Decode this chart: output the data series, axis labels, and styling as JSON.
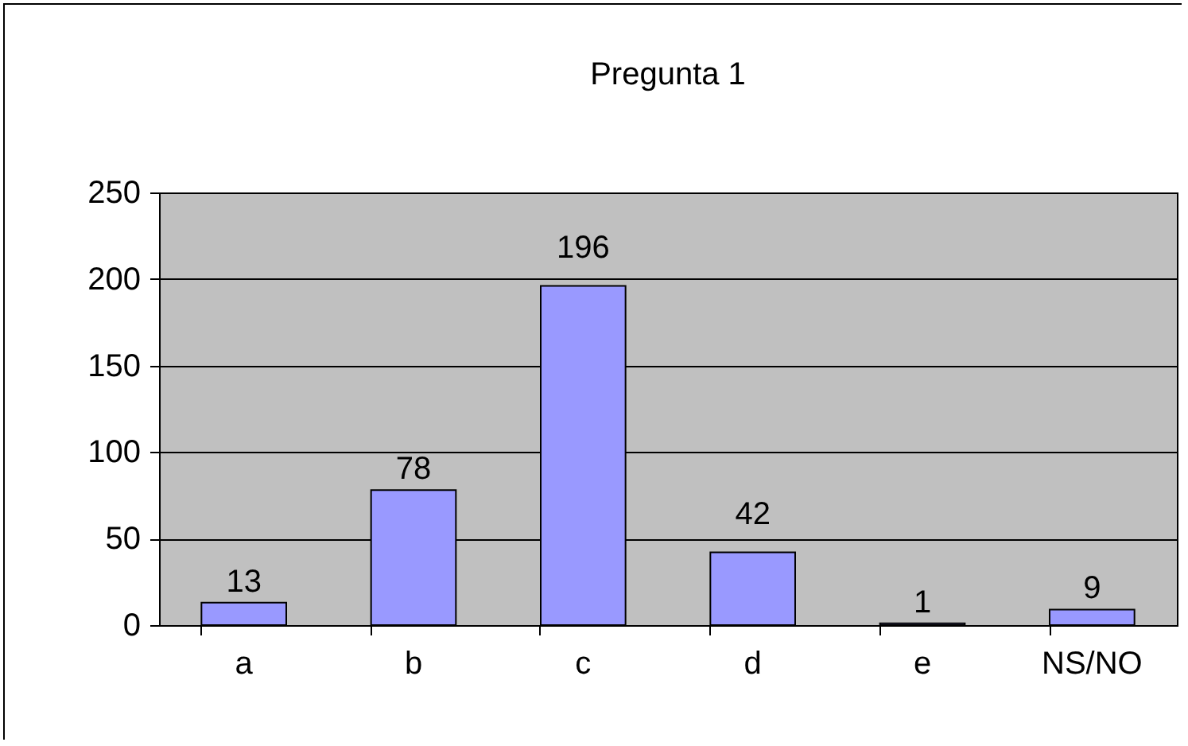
{
  "chart_data": {
    "type": "bar",
    "title": "Pregunta 1",
    "categories": [
      "a",
      "b",
      "c",
      "d",
      "e",
      "NS/NO"
    ],
    "values": [
      13,
      78,
      196,
      42,
      1,
      9
    ],
    "color": "#9999ff",
    "ylim": [
      0,
      250
    ],
    "yticks": [
      0,
      50,
      100,
      150,
      200,
      250
    ],
    "grid": "y",
    "data_labels": true,
    "legend": false
  }
}
